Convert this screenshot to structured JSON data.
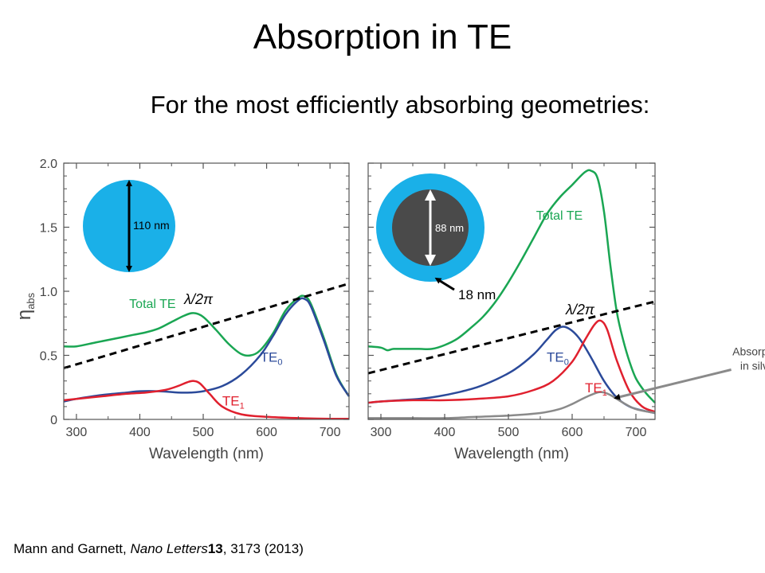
{
  "slide": {
    "title": "Absorption in TE",
    "subtitle": "For the most efficiently absorbing geometries:",
    "citation": {
      "authors": "Mann and Garnett, ",
      "journal": "Nano Letters",
      "volume": "13",
      "rest": ", 3173 (2013)"
    }
  },
  "colors": {
    "total_te": "#1aa653",
    "te0": "#2b4a9a",
    "te1": "#e0202e",
    "silver": "#8a8a8a",
    "line": "#000000",
    "particle": "#1ab0e8",
    "core": "#4a4a4a"
  },
  "chart_data": [
    {
      "type": "line",
      "xlabel": "Wavelength (nm)",
      "ylabel": "η",
      "ylabel_sub": "abs",
      "xlim": [
        280,
        730
      ],
      "ylim": [
        0,
        2.0
      ],
      "xticks": [
        300,
        400,
        500,
        600,
        700
      ],
      "yticks": [
        0,
        0.5,
        1.0,
        1.5,
        2.0
      ],
      "ytick_labels": [
        "0",
        "0.5",
        "1.0",
        "1.5",
        "2.0"
      ],
      "inset": {
        "label": "110 nm"
      },
      "series": [
        {
          "name": "Total TE",
          "color_key": "total_te",
          "x": [
            280,
            300,
            330,
            360,
            390,
            410,
            430,
            450,
            470,
            485,
            500,
            520,
            540,
            560,
            575,
            590,
            610,
            630,
            650,
            660,
            670,
            690,
            710,
            730
          ],
          "y": [
            0.57,
            0.57,
            0.6,
            0.63,
            0.66,
            0.68,
            0.71,
            0.76,
            0.81,
            0.83,
            0.8,
            0.7,
            0.59,
            0.51,
            0.5,
            0.54,
            0.67,
            0.85,
            0.95,
            0.96,
            0.9,
            0.64,
            0.35,
            0.18
          ]
        },
        {
          "name": "TE0",
          "label": "TE",
          "sub": "0",
          "color_key": "te0",
          "x": [
            280,
            300,
            340,
            380,
            400,
            430,
            460,
            480,
            500,
            530,
            560,
            590,
            610,
            630,
            650,
            660,
            670,
            690,
            710,
            730
          ],
          "y": [
            0.14,
            0.16,
            0.19,
            0.21,
            0.22,
            0.22,
            0.21,
            0.21,
            0.22,
            0.26,
            0.35,
            0.5,
            0.65,
            0.82,
            0.93,
            0.94,
            0.88,
            0.62,
            0.34,
            0.18
          ]
        },
        {
          "name": "TE1",
          "label": "TE",
          "sub": "1",
          "color_key": "te1",
          "x": [
            280,
            300,
            340,
            380,
            410,
            440,
            460,
            475,
            485,
            495,
            510,
            530,
            560,
            600,
            650,
            700,
            730
          ],
          "y": [
            0.15,
            0.16,
            0.18,
            0.2,
            0.21,
            0.23,
            0.26,
            0.29,
            0.3,
            0.28,
            0.2,
            0.1,
            0.04,
            0.02,
            0.01,
            0.005,
            0.005
          ]
        },
        {
          "name": "λ/2π",
          "dashed": true,
          "color_key": "line",
          "x": [
            280,
            730
          ],
          "y": [
            0.4,
            1.06
          ]
        }
      ],
      "annotations": [
        {
          "series": "Total TE",
          "text": "Total TE",
          "x": 420,
          "y": 0.87
        },
        {
          "series": "TE0",
          "text": "TE",
          "sub": "0",
          "x": 590,
          "y": 0.45
        },
        {
          "series": "TE1",
          "text": "TE",
          "sub": "1",
          "x": 530,
          "y": 0.11
        },
        {
          "series": "λ/2π",
          "text": "λ/2π",
          "x": 470,
          "y": 0.9
        }
      ]
    },
    {
      "type": "line",
      "xlabel": "Wavelength (nm)",
      "xlim": [
        280,
        730
      ],
      "ylim": [
        0,
        2.0
      ],
      "xticks": [
        300,
        400,
        500,
        600,
        700
      ],
      "inset": {
        "core_label": "88 nm",
        "shell_label": "18 nm"
      },
      "series": [
        {
          "name": "Total TE",
          "color_key": "total_te",
          "x": [
            280,
            300,
            310,
            320,
            340,
            360,
            380,
            400,
            420,
            440,
            460,
            480,
            500,
            520,
            540,
            560,
            580,
            600,
            620,
            630,
            640,
            650,
            660,
            670,
            680,
            690,
            700,
            715,
            730
          ],
          "y": [
            0.57,
            0.56,
            0.54,
            0.55,
            0.55,
            0.55,
            0.55,
            0.58,
            0.63,
            0.71,
            0.8,
            0.92,
            1.07,
            1.24,
            1.42,
            1.6,
            1.73,
            1.83,
            1.93,
            1.94,
            1.88,
            1.62,
            1.2,
            0.84,
            0.62,
            0.45,
            0.32,
            0.21,
            0.13
          ]
        },
        {
          "name": "TE0",
          "label": "TE",
          "sub": "0",
          "color_key": "te0",
          "x": [
            280,
            300,
            330,
            360,
            390,
            420,
            450,
            480,
            510,
            540,
            560,
            575,
            590,
            610,
            630,
            650,
            670,
            690,
            710,
            730
          ],
          "y": [
            0.13,
            0.14,
            0.15,
            0.16,
            0.18,
            0.21,
            0.25,
            0.31,
            0.39,
            0.51,
            0.62,
            0.7,
            0.72,
            0.64,
            0.48,
            0.3,
            0.17,
            0.1,
            0.07,
            0.05
          ]
        },
        {
          "name": "TE1",
          "label": "TE",
          "sub": "1",
          "color_key": "te1",
          "x": [
            280,
            300,
            350,
            400,
            450,
            500,
            540,
            570,
            600,
            620,
            635,
            645,
            655,
            670,
            690,
            710,
            730
          ],
          "y": [
            0.13,
            0.14,
            0.15,
            0.15,
            0.16,
            0.18,
            0.23,
            0.3,
            0.45,
            0.62,
            0.74,
            0.77,
            0.7,
            0.46,
            0.22,
            0.1,
            0.06
          ]
        },
        {
          "name": "Absorption in silver",
          "color_key": "silver",
          "x": [
            280,
            350,
            400,
            450,
            500,
            550,
            580,
            600,
            620,
            640,
            650,
            660,
            680,
            700,
            730
          ],
          "y": [
            0.01,
            0.01,
            0.01,
            0.02,
            0.03,
            0.05,
            0.08,
            0.12,
            0.17,
            0.21,
            0.21,
            0.19,
            0.13,
            0.08,
            0.05
          ]
        },
        {
          "name": "λ/2π",
          "dashed": true,
          "color_key": "line",
          "x": [
            280,
            730
          ],
          "y": [
            0.36,
            0.92
          ]
        }
      ],
      "annotations": [
        {
          "series": "Total TE",
          "text": "Total TE",
          "x": 580,
          "y": 1.56
        },
        {
          "series": "TE0",
          "text": "TE",
          "sub": "0",
          "x": 560,
          "y": 0.45
        },
        {
          "series": "TE1",
          "text": "TE",
          "sub": "1",
          "x": 620,
          "y": 0.21
        },
        {
          "series": "λ/2π",
          "text": "λ/2π",
          "x": 590,
          "y": 0.82
        },
        {
          "series": "Absorption in silver",
          "text": "Absorption",
          "text2": "in silver",
          "x": 772,
          "y": 0.5
        }
      ]
    }
  ]
}
